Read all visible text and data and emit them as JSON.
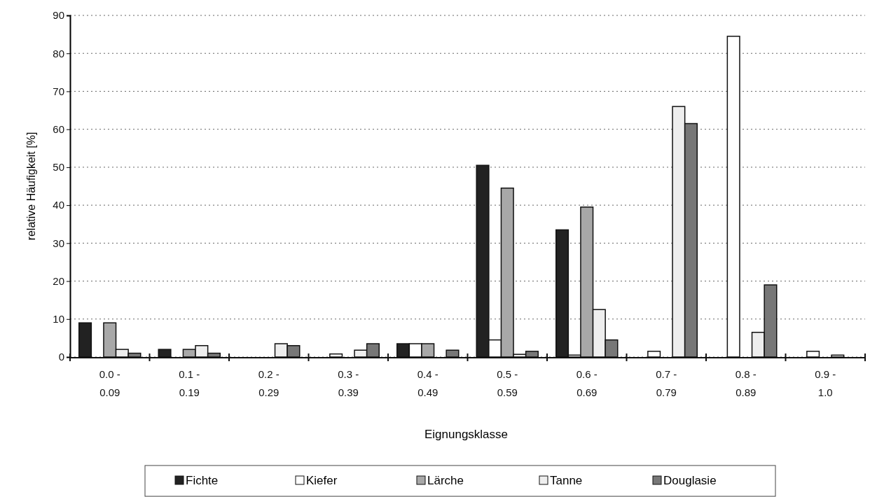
{
  "chart_data": {
    "type": "bar",
    "xlabel": "Eignungsklasse",
    "ylabel": "relative Häufigkeit [%]",
    "categories": [
      "0.0 - 0.09",
      "0.1 - 0.19",
      "0.2 - 0.29",
      "0.3 - 0.39",
      "0.4 - 0.49",
      "0.5 - 0.59",
      "0.6 - 0.69",
      "0.7 - 0.79",
      "0.8 - 0.89",
      "0.9 - 1.0"
    ],
    "series": [
      {
        "name": "Fichte",
        "color": "#222222",
        "values": [
          9,
          2,
          0,
          0,
          3.5,
          50.5,
          33.5,
          0,
          0,
          0
        ]
      },
      {
        "name": "Kiefer",
        "color": "#ffffff",
        "values": [
          0,
          0,
          0,
          0.8,
          3.5,
          4.5,
          0.5,
          1.5,
          84.5,
          1.5
        ]
      },
      {
        "name": "Lärche",
        "color": "#a8a8a8",
        "values": [
          9,
          2,
          0,
          0,
          3.5,
          44.5,
          39.5,
          0,
          0,
          0
        ]
      },
      {
        "name": "Tanne",
        "color": "#eeeeee",
        "values": [
          2,
          3,
          3.5,
          1.8,
          0,
          0.7,
          12.5,
          66,
          6.5,
          0.5
        ]
      },
      {
        "name": "Douglasie",
        "color": "#777777",
        "values": [
          1,
          1,
          3,
          3.5,
          1.8,
          1.5,
          4.5,
          61.5,
          19,
          0
        ]
      }
    ],
    "ylim": [
      0,
      90
    ],
    "yticks": [
      0,
      10,
      20,
      30,
      40,
      50,
      60,
      70,
      80,
      90
    ],
    "grid": "y",
    "legend": "bottom"
  }
}
